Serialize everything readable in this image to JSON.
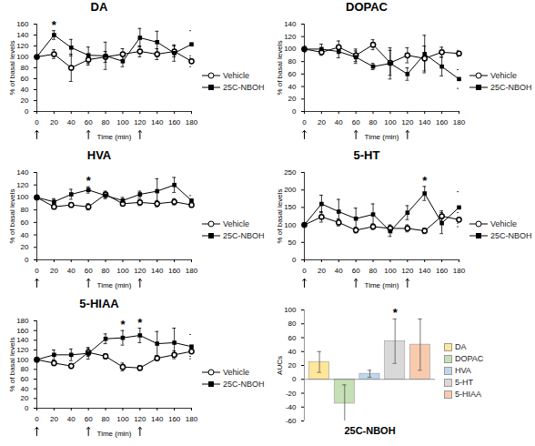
{
  "chart_data": [
    {
      "type": "line",
      "title": "DA",
      "xlabel": "Time (min)",
      "ylabel": "% of basal levels",
      "x": [
        0,
        20,
        40,
        60,
        80,
        100,
        120,
        140,
        160,
        180
      ],
      "xlim": [
        0,
        180
      ],
      "xticks": [
        0,
        20,
        40,
        60,
        80,
        100,
        120,
        140,
        160,
        180
      ],
      "ylim": [
        0,
        160
      ],
      "yticks": [
        0,
        20,
        40,
        60,
        80,
        100,
        120,
        140,
        160
      ],
      "legend": "right",
      "injections": [
        0,
        60,
        120
      ],
      "series": [
        {
          "name": "Vehicle",
          "color": "#000000",
          "marker": "open_circle",
          "values": [
            100,
            105,
            80,
            95,
            100,
            105,
            110,
            105,
            110,
            92
          ],
          "errors": [
            0,
            8,
            25,
            10,
            10,
            10,
            10,
            10,
            10,
            10
          ]
        },
        {
          "name": "25C-NBOH",
          "color": "#000000",
          "marker": "square",
          "values": [
            100,
            140,
            117,
            103,
            102,
            92,
            135,
            127,
            107,
            123
          ],
          "errors": [
            0,
            8,
            15,
            15,
            25,
            10,
            17,
            20,
            15,
            25
          ]
        }
      ],
      "annotations": [
        {
          "x": 20,
          "series": "25C-NBOH",
          "text": "*"
        }
      ]
    },
    {
      "type": "line",
      "title": "DOPAC",
      "xlabel": "Time (min)",
      "ylabel": "% of basal levels",
      "x": [
        0,
        20,
        40,
        60,
        80,
        100,
        120,
        140,
        160,
        180
      ],
      "xlim": [
        0,
        180
      ],
      "xticks": [
        0,
        20,
        40,
        60,
        80,
        100,
        120,
        140,
        160,
        180
      ],
      "ylim": [
        0,
        140
      ],
      "yticks": [
        0,
        20,
        40,
        60,
        80,
        100,
        120,
        140
      ],
      "legend": "right",
      "injections": [
        0,
        60,
        120
      ],
      "series": [
        {
          "name": "Vehicle",
          "color": "#000000",
          "marker": "open_circle",
          "values": [
            100,
            95,
            103,
            90,
            107,
            78,
            90,
            85,
            95,
            93
          ],
          "errors": [
            3,
            5,
            10,
            10,
            8,
            20,
            12,
            20,
            8,
            5
          ]
        },
        {
          "name": "25C-NBOH",
          "color": "#000000",
          "marker": "square",
          "values": [
            100,
            100,
            96,
            87,
            72,
            77,
            60,
            92,
            72,
            52
          ],
          "errors": [
            5,
            8,
            10,
            10,
            5,
            25,
            10,
            30,
            15,
            15
          ]
        }
      ],
      "annotations": []
    },
    {
      "type": "line",
      "title": "HVA",
      "xlabel": "Time (min)",
      "ylabel": "% of basal levels",
      "x": [
        0,
        20,
        40,
        60,
        80,
        100,
        120,
        140,
        160,
        180
      ],
      "xlim": [
        0,
        180
      ],
      "xticks": [
        0,
        20,
        40,
        60,
        80,
        100,
        120,
        140,
        160,
        180
      ],
      "ylim": [
        0,
        140
      ],
      "yticks": [
        0,
        20,
        40,
        60,
        80,
        100,
        120,
        140
      ],
      "legend": "right",
      "injections": [
        0,
        60,
        120
      ],
      "series": [
        {
          "name": "Vehicle",
          "color": "#000000",
          "marker": "open_circle",
          "values": [
            100,
            85,
            88,
            85,
            105,
            90,
            92,
            90,
            93,
            88
          ],
          "errors": [
            3,
            3,
            3,
            5,
            5,
            3,
            5,
            5,
            5,
            3
          ]
        },
        {
          "name": "25C-NBOH",
          "color": "#000000",
          "marker": "square",
          "values": [
            100,
            93,
            105,
            112,
            103,
            95,
            105,
            110,
            120,
            95
          ],
          "errors": [
            3,
            5,
            8,
            5,
            5,
            5,
            5,
            20,
            12,
            8
          ]
        }
      ],
      "annotations": [
        {
          "x": 60,
          "series": "25C-NBOH",
          "text": "*"
        }
      ]
    },
    {
      "type": "line",
      "title": "5-HT",
      "xlabel": "Time (min)",
      "ylabel": "% of basal levels",
      "x": [
        0,
        20,
        40,
        60,
        80,
        100,
        120,
        140,
        160,
        180
      ],
      "xlim": [
        0,
        180
      ],
      "xticks": [
        0,
        20,
        40,
        60,
        80,
        100,
        120,
        140,
        160,
        180
      ],
      "ylim": [
        0,
        250
      ],
      "yticks": [
        0,
        50,
        100,
        150,
        200,
        250
      ],
      "legend": "right",
      "injections": [
        0,
        60,
        120
      ],
      "series": [
        {
          "name": "Vehicle",
          "color": "#000000",
          "marker": "open_circle",
          "values": [
            100,
            123,
            107,
            85,
            95,
            90,
            90,
            83,
            125,
            115
          ],
          "errors": [
            5,
            15,
            10,
            8,
            8,
            10,
            10,
            8,
            15,
            20
          ]
        },
        {
          "name": "25C-NBOH",
          "color": "#000000",
          "marker": "square",
          "values": [
            100,
            160,
            138,
            118,
            130,
            82,
            135,
            190,
            105,
            150
          ],
          "errors": [
            0,
            25,
            35,
            30,
            30,
            15,
            20,
            20,
            30,
            45
          ]
        }
      ],
      "annotations": [
        {
          "x": 140,
          "series": "25C-NBOH",
          "text": "*"
        }
      ]
    },
    {
      "type": "line",
      "title": "5-HIAA",
      "xlabel": "Time (min)",
      "ylabel": "% of basal levels",
      "x": [
        0,
        20,
        40,
        60,
        80,
        100,
        120,
        140,
        160,
        180
      ],
      "xlim": [
        0,
        180
      ],
      "xticks": [
        0,
        20,
        40,
        60,
        80,
        100,
        120,
        140,
        160,
        180
      ],
      "ylim": [
        0,
        180
      ],
      "yticks": [
        0,
        20,
        40,
        60,
        80,
        100,
        120,
        140,
        160,
        180
      ],
      "legend": "right",
      "injections": [
        0,
        60,
        120
      ],
      "series": [
        {
          "name": "Vehicle",
          "color": "#000000",
          "marker": "open_circle",
          "values": [
            100,
            93,
            87,
            115,
            107,
            85,
            83,
            103,
            110,
            117
          ],
          "errors": [
            3,
            5,
            5,
            8,
            5,
            8,
            5,
            5,
            8,
            10
          ]
        },
        {
          "name": "25C-NBOH",
          "color": "#000000",
          "marker": "square",
          "values": [
            100,
            110,
            110,
            113,
            143,
            145,
            150,
            133,
            135,
            127
          ],
          "errors": [
            3,
            10,
            12,
            12,
            10,
            15,
            15,
            25,
            30,
            25
          ]
        }
      ],
      "annotations": [
        {
          "x": 100,
          "series": "25C-NBOH",
          "text": "*"
        },
        {
          "x": 120,
          "series": "25C-NBOH",
          "text": "*"
        }
      ]
    },
    {
      "type": "bar",
      "xlabel": "25C-NBOH",
      "ylabel": "AUCs",
      "categories": [
        "DA",
        "DOPAC",
        "HVA",
        "5-HT",
        "5-HIAA"
      ],
      "values": [
        25,
        -35,
        8,
        55,
        50
      ],
      "errors": [
        15,
        27,
        5,
        32,
        37
      ],
      "colors": [
        "#ffe699",
        "#c5e0b4",
        "#bdd7ee",
        "#d9d9d9",
        "#f8cbad"
      ],
      "ylim": [
        -60,
        100
      ],
      "yticks": [
        -60,
        -40,
        -20,
        0,
        20,
        40,
        60,
        80,
        100
      ],
      "legend": "right",
      "tick_labels": "y",
      "annotations": [
        {
          "category": "5-HT",
          "text": "*"
        }
      ]
    }
  ]
}
